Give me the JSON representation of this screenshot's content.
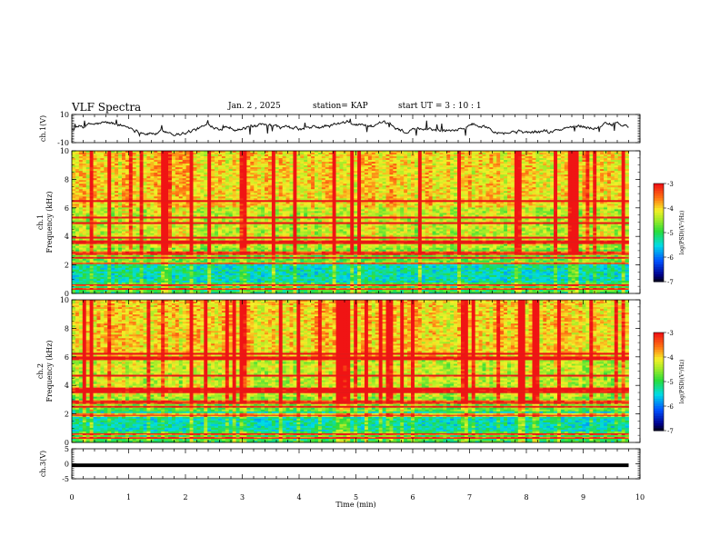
{
  "header": {
    "title": "VLF Spectra",
    "date": "Jan. 2 , 2025",
    "station": "station= KAP",
    "start": "start UT =  3 : 10 : 1"
  },
  "chart_data": {
    "type": "heatmap",
    "title": "VLF Spectra",
    "xlabel": "Time (min)",
    "xlim": [
      0,
      10
    ],
    "xticks": [
      "0",
      "1",
      "2",
      "3",
      "4",
      "5",
      "6",
      "7",
      "8",
      "9",
      "10"
    ],
    "panels": [
      {
        "id": "ch1-waveform",
        "kind": "line",
        "ylabel": "ch.1(V)",
        "ylim": [
          -10,
          10
        ],
        "yticks": [
          "10",
          "-10"
        ],
        "data_end_min": 9.8,
        "approx_range": [
          -5,
          8
        ]
      },
      {
        "id": "ch1-spectrogram",
        "kind": "heatmap",
        "ylabel": "ch.1\nFrequency (kHz)",
        "ylim": [
          0,
          10
        ],
        "yticks": [
          "0",
          "2",
          "4",
          "6",
          "8",
          "10"
        ],
        "data_end_min": 9.8,
        "bands_khz": [
          0.3,
          0.6,
          2.1,
          2.5,
          2.8,
          3.6,
          3.9,
          4.9,
          5.3,
          6.5
        ],
        "colorbar": {
          "label": "log(PSD)(V²/Hz)",
          "ticks": [
            "-3",
            "-4",
            "-5",
            "-6",
            "-7"
          ],
          "range": [
            -7,
            -3
          ]
        }
      },
      {
        "id": "ch2-spectrogram",
        "kind": "heatmap",
        "ylabel": "ch.2\nFrequency (kHz)",
        "ylim": [
          0,
          10
        ],
        "yticks": [
          "0",
          "2",
          "4",
          "6",
          "8",
          "10"
        ],
        "data_end_min": 9.8,
        "bands_khz": [
          0.3,
          0.6,
          1.9,
          2.5,
          2.8,
          3.5,
          3.7,
          4.7,
          5.9,
          6.2
        ],
        "colorbar": {
          "label": "log(PSD)(V²/Hz)",
          "ticks": [
            "-3",
            "-4",
            "-5",
            "-6",
            "-7"
          ],
          "range": [
            -7,
            -3
          ]
        }
      },
      {
        "id": "ch3-waveform",
        "kind": "line",
        "ylabel": "ch.3(V)",
        "ylim": [
          -5,
          5
        ],
        "yticks": [
          "5",
          "0",
          "-5"
        ],
        "data_end_min": 9.8,
        "level_v": -0.5,
        "spread_v": 0.6
      }
    ]
  }
}
